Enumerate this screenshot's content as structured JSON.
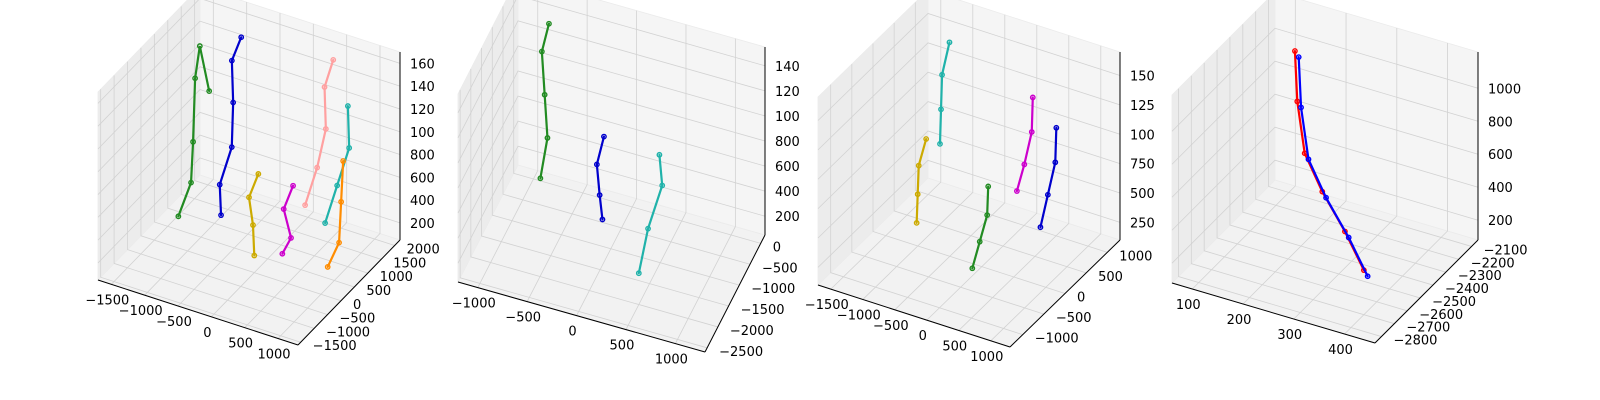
{
  "figure": {
    "background": "#ffffff"
  },
  "chart_data": [
    {
      "type": "scatter",
      "subtype": "3d-skeleton",
      "title": "",
      "xlabel": "",
      "ylabel": "",
      "zlabel": "",
      "grid": true,
      "x_ticks": [
        "−1500",
        "−1000",
        "−500",
        "0",
        "500",
        "1000"
      ],
      "y_ticks": [
        "−1500",
        "−1000",
        "−500",
        "0",
        "500",
        "1000",
        "1500",
        "2000"
      ],
      "z_ticks": [
        "200",
        "400",
        "600",
        "800",
        "1000",
        "1200",
        "1400",
        "1600"
      ],
      "z_ticks_display": [
        "200",
        "400",
        "600",
        "800",
        "100",
        "120",
        "140",
        "160"
      ],
      "xlim": [
        -1700,
        1300
      ],
      "ylim": [
        -1600,
        2200
      ],
      "zlim": [
        50,
        1700
      ],
      "series": [
        {
          "color": "#228b22",
          "polylines": [
            [
              [
                -1200,
                1300,
                1100
              ],
              [
                -1300,
                1200,
                1500
              ],
              [
                -1250,
                900,
                1300
              ],
              [
                -1200,
                700,
                800
              ],
              [
                -1150,
                500,
                500
              ],
              [
                -1300,
                400,
                200
              ]
            ]
          ]
        },
        {
          "color": "#0000cc",
          "polylines": [
            [
              [
                -800,
                1500,
                1600
              ],
              [
                -900,
                1400,
                1400
              ],
              [
                -800,
                1200,
                1100
              ],
              [
                -700,
                900,
                800
              ],
              [
                -800,
                700,
                500
              ],
              [
                -700,
                500,
                300
              ]
            ]
          ]
        },
        {
          "color": "#ffa0a0",
          "polylines": [
            [
              [
                500,
                1700,
                1600
              ],
              [
                450,
                1500,
                1400
              ],
              [
                550,
                1300,
                1100
              ],
              [
                500,
                1100,
                800
              ],
              [
                400,
                900,
                500
              ]
            ]
          ]
        },
        {
          "color": "#20b2aa",
          "polylines": [
            [
              [
                800,
                1500,
                1300
              ],
              [
                900,
                1300,
                1000
              ],
              [
                800,
                1100,
                700
              ],
              [
                700,
                900,
                400
              ]
            ]
          ]
        },
        {
          "color": "#ff8c00",
          "polylines": [
            [
              [
                850,
                1200,
                900
              ],
              [
                900,
                1000,
                600
              ],
              [
                950,
                800,
                300
              ],
              [
                900,
                500,
                150
              ]
            ]
          ]
        },
        {
          "color": "#cc00cc",
          "polylines": [
            [
              [
                300,
                700,
                700
              ],
              [
                200,
                600,
                500
              ],
              [
                350,
                500,
                300
              ],
              [
                300,
                300,
                200
              ]
            ]
          ]
        },
        {
          "color": "#ccaa00",
          "polylines": [
            [
              [
                -100,
                400,
                800
              ],
              [
                -200,
                300,
                600
              ],
              [
                -100,
                200,
                400
              ],
              [
                0,
                0,
                200
              ]
            ]
          ]
        }
      ]
    },
    {
      "type": "scatter",
      "subtype": "3d-skeleton",
      "title": "",
      "xlabel": "",
      "ylabel": "",
      "zlabel": "",
      "grid": true,
      "x_ticks": [
        "−1000",
        "−500",
        "0",
        "500",
        "1000"
      ],
      "y_ticks": [
        "−2500",
        "−2000",
        "−1500",
        "−1000",
        "−500",
        "0"
      ],
      "z_ticks": [
        "200",
        "400",
        "600",
        "800",
        "1000",
        "1200",
        "1400"
      ],
      "z_ticks_display": [
        "200",
        "400",
        "600",
        "800",
        "100",
        "120",
        "140"
      ],
      "xlim": [
        -1200,
        1300
      ],
      "ylim": [
        -2600,
        200
      ],
      "zlim": [
        50,
        1550
      ],
      "series": [
        {
          "color": "#228b22",
          "polylines": [
            [
              [
                -800,
                -200,
                1400
              ],
              [
                -850,
                -300,
                1200
              ],
              [
                -800,
                -400,
                900
              ],
              [
                -750,
                -500,
                600
              ],
              [
                -800,
                -600,
                300
              ]
            ]
          ]
        },
        {
          "color": "#0000cc",
          "polylines": [
            [
              [
                -200,
                -400,
                700
              ],
              [
                -250,
                -500,
                500
              ],
              [
                -200,
                -600,
                300
              ],
              [
                -150,
                -700,
                150
              ]
            ]
          ]
        },
        {
          "color": "#20b2aa",
          "polylines": [
            [
              [
                600,
                -1500,
                1100
              ],
              [
                650,
                -1600,
                900
              ],
              [
                550,
                -1800,
                600
              ],
              [
                500,
                -2000,
                300
              ]
            ]
          ]
        }
      ]
    },
    {
      "type": "scatter",
      "subtype": "3d-skeleton",
      "title": "",
      "xlabel": "",
      "ylabel": "",
      "zlabel": "",
      "grid": true,
      "x_ticks": [
        "−1500",
        "−1000",
        "−500",
        "0",
        "500",
        "1000"
      ],
      "y_ticks": [
        "−1000",
        "−500",
        "0",
        "500",
        "1000"
      ],
      "z_ticks": [
        "250",
        "500",
        "750",
        "1000",
        "1250",
        "1500"
      ],
      "z_ticks_display": [
        "250",
        "500",
        "750",
        "100",
        "125",
        "150"
      ],
      "xlim": [
        -1700,
        1300
      ],
      "ylim": [
        -1300,
        1300
      ],
      "zlim": [
        100,
        1700
      ],
      "series": [
        {
          "color": "#20b2aa",
          "polylines": [
            [
              [
                -1100,
                900,
                1500
              ],
              [
                -1150,
                800,
                1250
              ],
              [
                -1100,
                700,
                1000
              ],
              [
                -1050,
                600,
                750
              ]
            ]
          ]
        },
        {
          "color": "#ccaa00",
          "polylines": [
            [
              [
                -1200,
                500,
                800
              ],
              [
                -1250,
                400,
                600
              ],
              [
                -1200,
                300,
                400
              ],
              [
                -1150,
                200,
                200
              ]
            ]
          ]
        },
        {
          "color": "#cc00cc",
          "polylines": [
            [
              [
                400,
                600,
                1400
              ],
              [
                450,
                500,
                1150
              ],
              [
                400,
                400,
                900
              ],
              [
                350,
                300,
                700
              ]
            ]
          ]
        },
        {
          "color": "#0000cc",
          "polylines": [
            [
              [
                900,
                400,
                1300
              ],
              [
                950,
                300,
                1050
              ],
              [
                900,
                200,
                800
              ],
              [
                850,
                100,
                550
              ]
            ]
          ]
        },
        {
          "color": "#228b22",
          "polylines": [
            [
              [
                100,
                0,
                800
              ],
              [
                150,
                -100,
                600
              ],
              [
                100,
                -200,
                400
              ],
              [
                50,
                -300,
                200
              ]
            ]
          ]
        }
      ]
    },
    {
      "type": "line",
      "subtype": "3d-skeleton",
      "title": "",
      "xlabel": "",
      "ylabel": "",
      "zlabel": "",
      "grid": true,
      "x_ticks": [
        "100",
        "200",
        "300",
        "400"
      ],
      "y_ticks": [
        "−2800",
        "−2700",
        "−2600",
        "−2500",
        "−2400",
        "−2300",
        "−2200",
        "−2100"
      ],
      "z_ticks": [
        "200",
        "400",
        "600",
        "800",
        "1000"
      ],
      "xlim": [
        60,
        460
      ],
      "ylim": [
        -2850,
        -2050
      ],
      "zlim": [
        80,
        1220
      ],
      "series": [
        {
          "color": "#ff0000",
          "polylines": [
            [
              [
                150,
                -2250,
                1100
              ],
              [
                180,
                -2350,
                900
              ],
              [
                220,
                -2450,
                700
              ],
              [
                280,
                -2550,
                600
              ],
              [
                350,
                -2650,
                500
              ],
              [
                400,
                -2700,
                350
              ]
            ]
          ]
        },
        {
          "color": "#0000ff",
          "polylines": [
            [
              [
                160,
                -2260,
                1080
              ],
              [
                190,
                -2360,
                880
              ],
              [
                230,
                -2460,
                680
              ],
              [
                290,
                -2560,
                580
              ],
              [
                360,
                -2660,
                480
              ],
              [
                410,
                -2710,
                330
              ]
            ]
          ]
        }
      ]
    }
  ]
}
